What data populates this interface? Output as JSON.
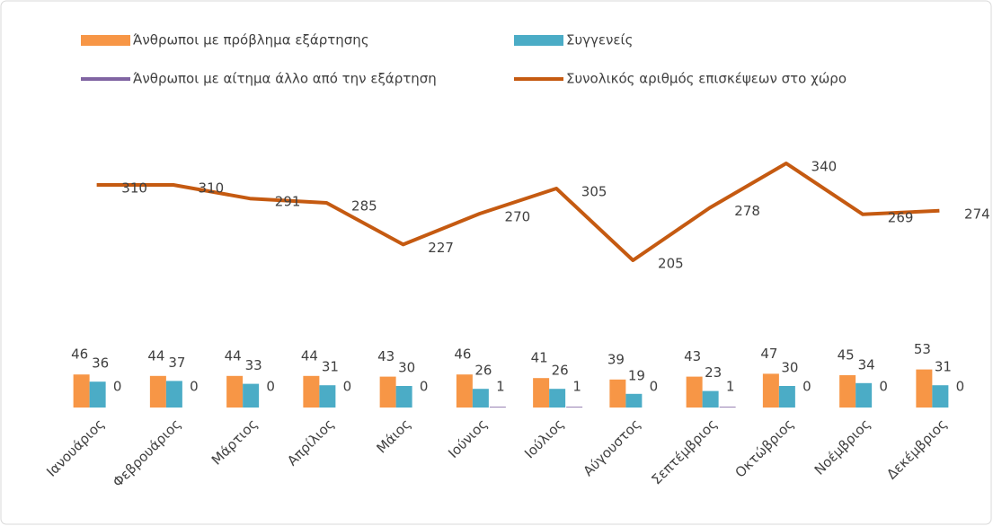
{
  "chart_data": {
    "type": "bar",
    "categories": [
      "Ιανουάριος",
      "Φεβρουάριος",
      "Μάρτιος",
      "Απρίλιος",
      "Μάιος",
      "Ιούνιος",
      "Ιούλιος",
      "Αύγουστος",
      "Σεπτέμβριος",
      "Οκτώβριος",
      "Νοέμβριος",
      "Δεκέμβριος"
    ],
    "series": [
      {
        "name": "Άνθρωποι με πρόβλημα εξάρτησης",
        "color": "#f79646",
        "values": [
          46,
          44,
          44,
          44,
          43,
          46,
          41,
          39,
          43,
          47,
          45,
          53
        ]
      },
      {
        "name": "Συγγενείς",
        "color": "#4bacc6",
        "values": [
          36,
          37,
          33,
          31,
          30,
          26,
          26,
          19,
          23,
          30,
          34,
          31
        ]
      },
      {
        "name": "Άνθρωποι με αίτημα άλλο από την εξάρτηση",
        "color": "#8064a2",
        "values": [
          0,
          0,
          0,
          0,
          0,
          1,
          1,
          0,
          1,
          0,
          0,
          0
        ]
      },
      {
        "name": "Συνολικός αριθμός επισκέψεων στο χώρο",
        "color": "#c55a11",
        "type": "line",
        "values": [
          310,
          310,
          291,
          285,
          227,
          270,
          305,
          205,
          278,
          340,
          269,
          274
        ]
      }
    ],
    "legend": "top"
  }
}
